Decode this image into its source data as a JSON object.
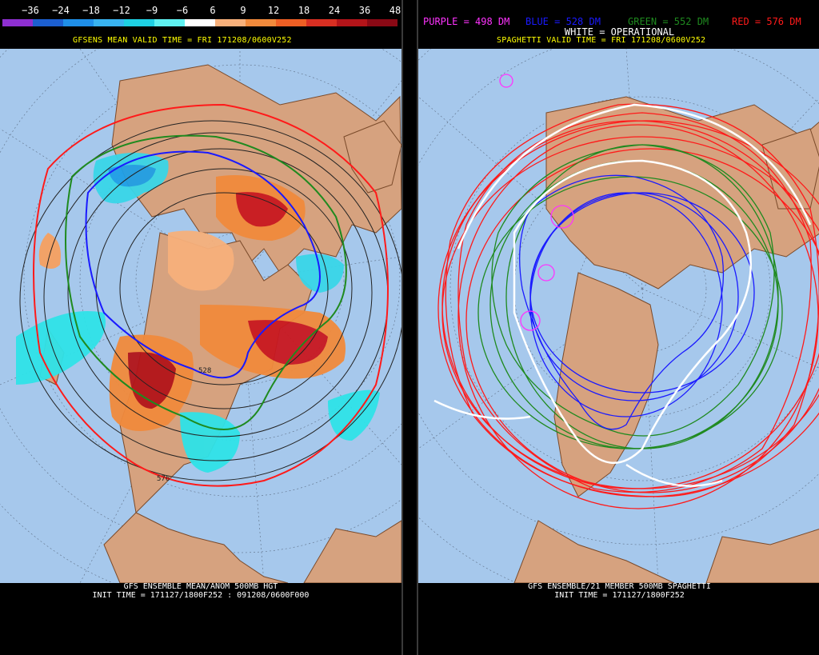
{
  "legend": {
    "ticks": [
      "−36",
      "−24",
      "−18",
      "−12",
      "−9",
      "−6",
      "6",
      "9",
      "12",
      "18",
      "24",
      "36",
      "48"
    ],
    "colors": [
      "#8e2fd1",
      "#1c5fd0",
      "#1f8fe8",
      "#39b3ef",
      "#1ed0e3",
      "#5ff1f1",
      "#ffffff",
      "#f7b07b",
      "#f18a3c",
      "#ee5f24",
      "#d82f22",
      "#b31419",
      "#8a0915"
    ]
  },
  "left": {
    "subtitle": "GFSENS MEAN VALID TIME = FRI 171208/0600V252",
    "contour_label_1": "528",
    "contour_label_2": "576",
    "footer_line1": "GFS ENSEMBLE MEAN/ANOM 500MB HGT",
    "footer_line2": "INIT TIME = 171127/1800F252 : 091208/0600F000"
  },
  "right": {
    "legend_purple": "PURPLE = 498 DM",
    "legend_blue": "BLUE = 528 DM",
    "legend_green": "GREEN = 552 DM",
    "legend_red": "RED = 576 DM",
    "legend_white": "WHITE = OPERATIONAL",
    "subtitle": "SPAGHETTI VALID TIME = FRI 171208/0600V252",
    "footer_line1": "GFS ENSEMBLE/21 MEMBER 500MB SPAGHETTI",
    "footer_line2": "INIT TIME = 171127/1800F252"
  },
  "colors": {
    "ocean": "#a6c8ec",
    "land": "#d6a27f",
    "coast": "#7a4a2a",
    "purple": "#ff33ff",
    "blue": "#1a1aff",
    "green": "#1f8a1f",
    "red": "#ff1a1a",
    "white": "#ffffff",
    "subtitle": "#ffff00"
  }
}
